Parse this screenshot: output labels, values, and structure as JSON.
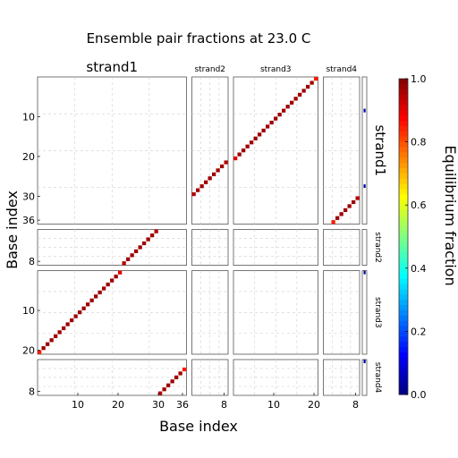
{
  "chart_data": {
    "type": "heatmap",
    "title": "Ensemble pair fractions at 23.0 C",
    "xlabel": "Base index",
    "ylabel": "Base index",
    "colorbar": {
      "label": "Equilibrium fraction",
      "range": [
        0.0,
        1.0
      ],
      "ticks": [
        "0.0",
        "0.2",
        "0.4",
        "0.6",
        "0.8",
        "1.0"
      ],
      "colormap": "jet"
    },
    "grid": true,
    "strands": [
      {
        "name": "strand1",
        "length": 37
      },
      {
        "name": "strand2",
        "length": 9
      },
      {
        "name": "strand3",
        "length": 21
      },
      {
        "name": "strand4",
        "length": 9
      }
    ],
    "x_ticks": {
      "strand1": [
        "10",
        "20",
        "30",
        "36"
      ],
      "strand2": [
        "8"
      ],
      "strand3": [
        "10",
        "20"
      ],
      "strand4": [
        "8"
      ]
    },
    "y_ticks": {
      "strand1": [
        "10",
        "20",
        "30",
        "36"
      ],
      "strand2": [
        "8"
      ],
      "strand3": [
        "10",
        "20"
      ],
      "strand4": [
        "8"
      ]
    },
    "pairs": [
      {
        "strand_a": "strand1",
        "i_start": 0,
        "strand_b": "strand3",
        "j_start": 20,
        "length": 21,
        "value": 0.97,
        "edge_values": [
          0.85,
          0.9
        ]
      },
      {
        "strand_a": "strand1",
        "i_start": 21,
        "strand_b": "strand2",
        "j_start": 8,
        "length": 9,
        "value": 0.97,
        "edge_values": [
          0.95,
          0.95
        ]
      },
      {
        "strand_a": "strand1",
        "i_start": 30,
        "strand_b": "strand4",
        "j_start": 8,
        "length": 7,
        "value": 0.97,
        "edge_values": [
          0.95,
          0.85
        ]
      }
    ],
    "unpaired": [
      {
        "strand": "strand1",
        "positions": [
          8,
          27
        ],
        "value": 0.03
      },
      {
        "strand": "strand3",
        "positions": [
          0
        ],
        "value": 0.03
      },
      {
        "strand": "strand4",
        "positions": [
          0
        ],
        "value": 0.03
      }
    ]
  }
}
